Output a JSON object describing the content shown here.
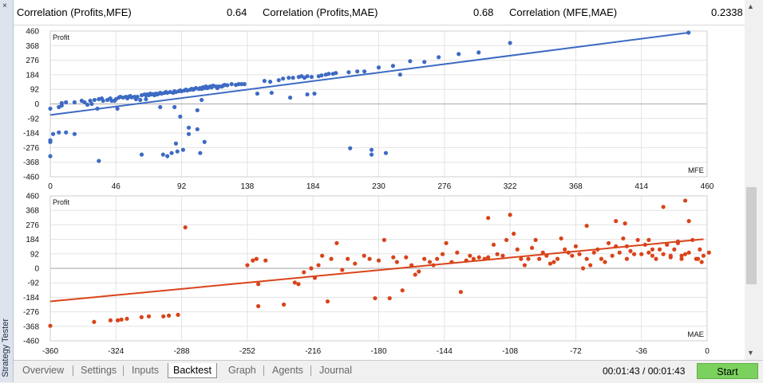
{
  "window": {
    "side_label": "Strategy Tester",
    "close_glyph": "×"
  },
  "correlations": [
    {
      "label": "Correlation (Profits,MFE)",
      "value": "0.64"
    },
    {
      "label": "Correlation (Profits,MAE)",
      "value": "0.68"
    },
    {
      "label": "Correlation (MFE,MAE)",
      "value": "0.2338"
    }
  ],
  "tabs": [
    "Overview",
    "Settings",
    "Inputs",
    "Backtest",
    "Graph",
    "Agents",
    "Journal"
  ],
  "active_tab": "Backtest",
  "timer": "00:01:43 / 00:01:43",
  "start_label": "Start",
  "colors": {
    "mfe": "#3d6bc4",
    "mae": "#d9431a",
    "grid": "#e3e3e3",
    "start": "#7bd15e"
  },
  "chart_data": [
    {
      "type": "scatter",
      "name": "Profit vs MFE",
      "ylabel": "Profit",
      "xlabel": "MFE",
      "xlim": [
        0,
        460
      ],
      "ylim": [
        -460,
        460
      ],
      "x_ticks": [
        0,
        46,
        92,
        138,
        184,
        230,
        276,
        322,
        368,
        414,
        460
      ],
      "y_ticks": [
        460,
        368,
        276,
        184,
        92,
        0,
        -92,
        -184,
        -276,
        -368,
        -460
      ],
      "trend": [
        [
          0,
          -70
        ],
        [
          447,
          450
        ]
      ],
      "color": "#3d6bc4",
      "points": [
        [
          0,
          -30
        ],
        [
          0,
          -230
        ],
        [
          0,
          -240
        ],
        [
          0,
          -330
        ],
        [
          2,
          -190
        ],
        [
          6,
          -180
        ],
        [
          6,
          -20
        ],
        [
          8,
          -10
        ],
        [
          8,
          5
        ],
        [
          11,
          10
        ],
        [
          11,
          -180
        ],
        [
          17,
          10
        ],
        [
          17,
          -190
        ],
        [
          22,
          20
        ],
        [
          24,
          10
        ],
        [
          26,
          -5
        ],
        [
          28,
          20
        ],
        [
          29,
          0
        ],
        [
          31,
          25
        ],
        [
          33,
          -30
        ],
        [
          34,
          30
        ],
        [
          34,
          -360
        ],
        [
          36,
          35
        ],
        [
          37,
          20
        ],
        [
          40,
          25
        ],
        [
          42,
          35
        ],
        [
          43,
          20
        ],
        [
          45,
          20
        ],
        [
          46,
          30
        ],
        [
          47,
          -30
        ],
        [
          48,
          40
        ],
        [
          49,
          45
        ],
        [
          51,
          40
        ],
        [
          53,
          45
        ],
        [
          54,
          35
        ],
        [
          55,
          45
        ],
        [
          56,
          50
        ],
        [
          57,
          42
        ],
        [
          59,
          45
        ],
        [
          60,
          30
        ],
        [
          61,
          45
        ],
        [
          63,
          25
        ],
        [
          64,
          55
        ],
        [
          64,
          -320
        ],
        [
          66,
          60
        ],
        [
          67,
          55
        ],
        [
          67,
          30
        ],
        [
          68,
          60
        ],
        [
          69,
          55
        ],
        [
          70,
          65
        ],
        [
          71,
          60
        ],
        [
          72,
          62
        ],
        [
          73,
          55
        ],
        [
          74,
          65
        ],
        [
          75,
          60
        ],
        [
          76,
          65
        ],
        [
          77,
          -20
        ],
        [
          77,
          70
        ],
        [
          78,
          65
        ],
        [
          79,
          -320
        ],
        [
          80,
          70
        ],
        [
          81,
          75
        ],
        [
          82,
          -330
        ],
        [
          82,
          70
        ],
        [
          84,
          75
        ],
        [
          85,
          -310
        ],
        [
          86,
          70
        ],
        [
          87,
          -20
        ],
        [
          87,
          80
        ],
        [
          88,
          75
        ],
        [
          88,
          -250
        ],
        [
          89,
          -300
        ],
        [
          90,
          80
        ],
        [
          91,
          -80
        ],
        [
          91,
          85
        ],
        [
          92,
          80
        ],
        [
          93,
          -290
        ],
        [
          94,
          85
        ],
        [
          95,
          90
        ],
        [
          96,
          85
        ],
        [
          97,
          -190
        ],
        [
          97,
          -150
        ],
        [
          98,
          90
        ],
        [
          99,
          95
        ],
        [
          100,
          90
        ],
        [
          101,
          95
        ],
        [
          102,
          100
        ],
        [
          103,
          -40
        ],
        [
          104,
          95
        ],
        [
          105,
          100
        ],
        [
          106,
          95
        ],
        [
          107,
          105
        ],
        [
          108,
          100
        ],
        [
          109,
          110
        ],
        [
          110,
          100
        ],
        [
          111,
          105
        ],
        [
          112,
          110
        ],
        [
          113,
          105
        ],
        [
          114,
          115
        ],
        [
          116,
          110
        ],
        [
          117,
          100
        ],
        [
          118,
          110
        ],
        [
          120,
          110
        ],
        [
          121,
          115
        ],
        [
          122,
          120
        ],
        [
          124,
          118
        ],
        [
          127,
          125
        ],
        [
          130,
          120
        ],
        [
          132,
          125
        ],
        [
          134,
          125
        ],
        [
          136,
          125
        ],
        [
          150,
          145
        ],
        [
          154,
          140
        ],
        [
          160,
          150
        ],
        [
          163,
          160
        ],
        [
          167,
          165
        ],
        [
          170,
          165
        ],
        [
          174,
          170
        ],
        [
          176,
          175
        ],
        [
          178,
          165
        ],
        [
          180,
          175
        ],
        [
          183,
          170
        ],
        [
          188,
          175
        ],
        [
          190,
          180
        ],
        [
          193,
          185
        ],
        [
          195,
          190
        ],
        [
          198,
          190
        ],
        [
          200,
          195
        ],
        [
          209,
          200
        ],
        [
          215,
          205
        ],
        [
          220,
          205
        ],
        [
          225,
          -290
        ],
        [
          230,
          230
        ],
        [
          240,
          240
        ],
        [
          252,
          270
        ],
        [
          272,
          295
        ],
        [
          286,
          315
        ],
        [
          300,
          325
        ],
        [
          322,
          385
        ],
        [
          447,
          450
        ],
        [
          262,
          265
        ],
        [
          245,
          185
        ],
        [
          155,
          70
        ],
        [
          105,
          -310
        ],
        [
          225,
          -320
        ],
        [
          103,
          -160
        ],
        [
          108,
          -240
        ],
        [
          106,
          25
        ],
        [
          210,
          -280
        ],
        [
          235,
          -310
        ],
        [
          145,
          65
        ],
        [
          180,
          60
        ],
        [
          168,
          40
        ],
        [
          185,
          65
        ]
      ]
    },
    {
      "type": "scatter",
      "name": "Profit vs MAE",
      "ylabel": "Profit",
      "xlabel": "MAE",
      "xlim": [
        -360,
        0
      ],
      "ylim": [
        -460,
        460
      ],
      "x_ticks": [
        -360,
        -324,
        -288,
        -252,
        -216,
        -180,
        -144,
        -108,
        -72,
        -36,
        0
      ],
      "y_ticks": [
        460,
        368,
        276,
        184,
        92,
        0,
        -92,
        -184,
        -276,
        -368,
        -460
      ],
      "trend": [
        [
          -360,
          -210
        ],
        [
          -2,
          185
        ]
      ],
      "color": "#d9431a",
      "points": [
        [
          -360,
          -365
        ],
        [
          -336,
          -340
        ],
        [
          -327,
          -330
        ],
        [
          -323,
          -330
        ],
        [
          -321,
          -325
        ],
        [
          -318,
          -320
        ],
        [
          -310,
          -310
        ],
        [
          -306,
          -305
        ],
        [
          -298,
          -305
        ],
        [
          -295,
          -300
        ],
        [
          -290,
          -295
        ],
        [
          -286,
          260
        ],
        [
          -252,
          20
        ],
        [
          -249,
          50
        ],
        [
          -247,
          60
        ],
        [
          -246,
          -240
        ],
        [
          -246,
          -100
        ],
        [
          -242,
          50
        ],
        [
          -232,
          -230
        ],
        [
          -226,
          -90
        ],
        [
          -224,
          -100
        ],
        [
          -221,
          -25
        ],
        [
          -217,
          0
        ],
        [
          -215,
          -60
        ],
        [
          -213,
          20
        ],
        [
          -211,
          80
        ],
        [
          -208,
          -210
        ],
        [
          -206,
          60
        ],
        [
          -203,
          160
        ],
        [
          -200,
          -10
        ],
        [
          -197,
          60
        ],
        [
          -193,
          30
        ],
        [
          -188,
          80
        ],
        [
          -185,
          60
        ],
        [
          -182,
          -190
        ],
        [
          -180,
          50
        ],
        [
          -177,
          180
        ],
        [
          -174,
          -190
        ],
        [
          -172,
          70
        ],
        [
          -170,
          40
        ],
        [
          -167,
          -140
        ],
        [
          -165,
          70
        ],
        [
          -162,
          20
        ],
        [
          -160,
          -40
        ],
        [
          -158,
          -20
        ],
        [
          -155,
          60
        ],
        [
          -152,
          40
        ],
        [
          -150,
          20
        ],
        [
          -148,
          60
        ],
        [
          -145,
          90
        ],
        [
          -143,
          160
        ],
        [
          -140,
          40
        ],
        [
          -137,
          100
        ],
        [
          -135,
          -150
        ],
        [
          -132,
          50
        ],
        [
          -130,
          80
        ],
        [
          -128,
          60
        ],
        [
          -125,
          70
        ],
        [
          -122,
          60
        ],
        [
          -120,
          70
        ],
        [
          -117,
          150
        ],
        [
          -115,
          90
        ],
        [
          -112,
          80
        ],
        [
          -110,
          180
        ],
        [
          -108,
          340
        ],
        [
          -106,
          220
        ],
        [
          -104,
          120
        ],
        [
          -102,
          60
        ],
        [
          -100,
          20
        ],
        [
          -98,
          60
        ],
        [
          -96,
          130
        ],
        [
          -94,
          180
        ],
        [
          -92,
          60
        ],
        [
          -90,
          100
        ],
        [
          -88,
          80
        ],
        [
          -86,
          30
        ],
        [
          -84,
          40
        ],
        [
          -82,
          60
        ],
        [
          -80,
          190
        ],
        [
          -78,
          120
        ],
        [
          -76,
          100
        ],
        [
          -74,
          80
        ],
        [
          -72,
          140
        ],
        [
          -70,
          90
        ],
        [
          -68,
          0
        ],
        [
          -66,
          60
        ],
        [
          -64,
          20
        ],
        [
          -62,
          100
        ],
        [
          -60,
          120
        ],
        [
          -58,
          60
        ],
        [
          -56,
          40
        ],
        [
          -54,
          160
        ],
        [
          -52,
          80
        ],
        [
          -50,
          140
        ],
        [
          -48,
          100
        ],
        [
          -46,
          190
        ],
        [
          -44,
          60
        ],
        [
          -42,
          110
        ],
        [
          -40,
          90
        ],
        [
          -38,
          180
        ],
        [
          -36,
          90
        ],
        [
          -34,
          150
        ],
        [
          -32,
          100
        ],
        [
          -30,
          80
        ],
        [
          -28,
          60
        ],
        [
          -26,
          120
        ],
        [
          -24,
          90
        ],
        [
          -22,
          150
        ],
        [
          -20,
          70
        ],
        [
          -18,
          120
        ],
        [
          -16,
          160
        ],
        [
          -14,
          60
        ],
        [
          -12,
          90
        ],
        [
          -10,
          100
        ],
        [
          -8,
          180
        ],
        [
          -6,
          60
        ],
        [
          -4,
          120
        ],
        [
          -2,
          80
        ],
        [
          -120,
          320
        ],
        [
          -66,
          270
        ],
        [
          -50,
          300
        ],
        [
          -45,
          285
        ],
        [
          -24,
          390
        ],
        [
          -16,
          170
        ],
        [
          -14,
          80
        ],
        [
          -12,
          430
        ],
        [
          -10,
          300
        ],
        [
          -5,
          60
        ],
        [
          -3,
          40
        ],
        [
          1,
          100
        ],
        [
          -30,
          120
        ],
        [
          -20,
          80
        ],
        [
          -32,
          180
        ],
        [
          -44,
          140
        ]
      ]
    }
  ]
}
